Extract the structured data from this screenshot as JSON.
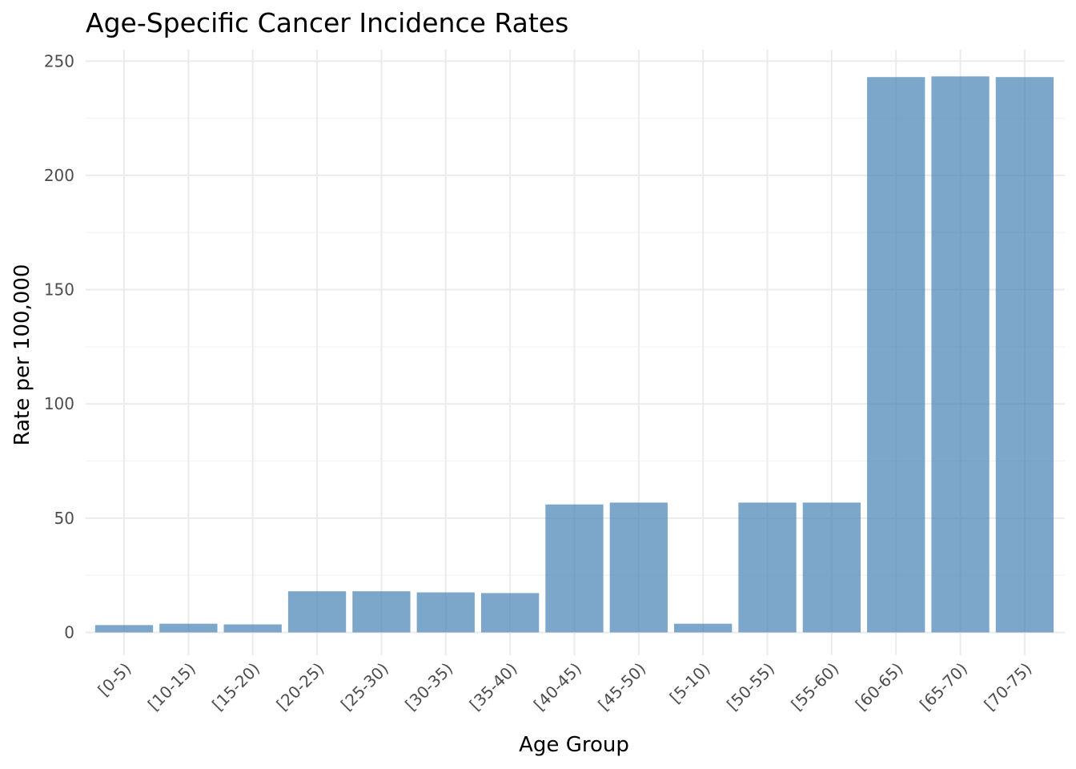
{
  "chart_data": {
    "type": "bar",
    "title": "Age-Specific Cancer Incidence Rates",
    "xlabel": "Age Group",
    "ylabel": "Rate per 100,000",
    "categories": [
      "[0-5)",
      "[10-15)",
      "[15-20)",
      "[20-25)",
      "[25-30)",
      "[30-35)",
      "[35-40)",
      "[40-45)",
      "[45-50)",
      "[5-10)",
      "[50-55)",
      "[55-60)",
      "[60-65)",
      "[65-70)",
      "[70-75)"
    ],
    "values": [
      3.2,
      3.8,
      3.5,
      18.0,
      18.0,
      17.5,
      17.2,
      56.0,
      56.8,
      3.8,
      56.8,
      56.8,
      243.0,
      243.3,
      243.0
    ],
    "ylim": [
      -10,
      255
    ],
    "yticks": [
      0,
      50,
      100,
      150,
      200,
      250
    ],
    "ytick_labels": [
      "0",
      "50",
      "100",
      "150",
      "200",
      "250"
    ],
    "bar_color": "#4682B4",
    "bar_opacity": 0.7,
    "grid": true,
    "legend": "none"
  }
}
